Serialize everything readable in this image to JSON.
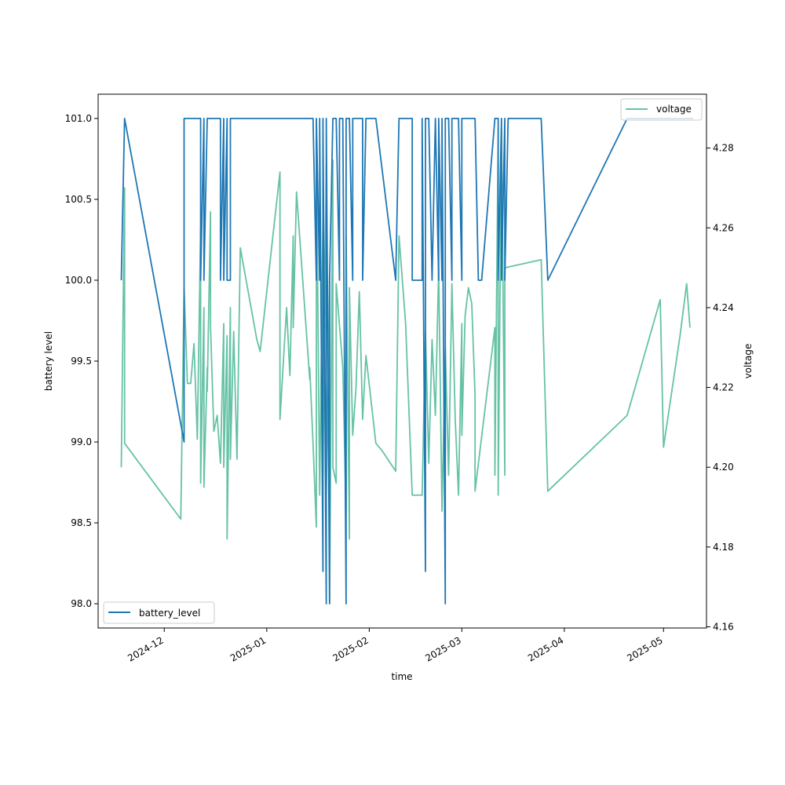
{
  "chart_data": {
    "type": "line",
    "xlabel": "time",
    "ylabel": "battery level",
    "y2label": "voltage",
    "x_tick_labels": [
      "2024-12",
      "2025-01",
      "2025-02",
      "2025-03",
      "2025-04",
      "2025-05"
    ],
    "x_ticks": [
      "2024-12-01",
      "2025-01-01",
      "2025-02-01",
      "2025-03-01",
      "2025-04-01",
      "2025-05-01"
    ],
    "xlim": [
      "2024-11-11",
      "2025-05-14"
    ],
    "ylim": [
      97.85,
      101.15
    ],
    "y_ticks": [
      98.0,
      98.5,
      99.0,
      99.5,
      100.0,
      100.5,
      101.0
    ],
    "y_tick_labels": [
      "98.0",
      "98.5",
      "99.0",
      "99.5",
      "100.0",
      "100.5",
      "101.0"
    ],
    "y2lim": [
      4.1597,
      4.2935
    ],
    "y2_ticks": [
      4.16,
      4.18,
      4.2,
      4.22,
      4.24,
      4.26,
      4.28
    ],
    "y2_tick_labels": [
      "4.16",
      "4.18",
      "4.20",
      "4.22",
      "4.24",
      "4.26",
      "4.28"
    ],
    "grid": false,
    "series": [
      {
        "name": "battery_level",
        "axis": "left",
        "color": "#1f77b4",
        "legend_loc": "lower-left",
        "points": [
          [
            "2024-11-18",
            100.0
          ],
          [
            "2024-11-19",
            101.0
          ],
          [
            "2024-12-07",
            99.0
          ],
          [
            "2024-12-07",
            101.0
          ],
          [
            "2024-12-12",
            101.0
          ],
          [
            "2024-12-12",
            100.0
          ],
          [
            "2024-12-13",
            101.0
          ],
          [
            "2024-12-13",
            100.0
          ],
          [
            "2024-12-14",
            101.0
          ],
          [
            "2024-12-18",
            101.0
          ],
          [
            "2024-12-18",
            100.0
          ],
          [
            "2024-12-19",
            101.0
          ],
          [
            "2024-12-19",
            100.0
          ],
          [
            "2024-12-20",
            101.0
          ],
          [
            "2024-12-20",
            100.0
          ],
          [
            "2024-12-21",
            100.0
          ],
          [
            "2024-12-21",
            101.0
          ],
          [
            "2025-01-15",
            101.0
          ],
          [
            "2025-01-16",
            100.0
          ],
          [
            "2025-01-16",
            101.0
          ],
          [
            "2025-01-17",
            100.0
          ],
          [
            "2025-01-17",
            101.0
          ],
          [
            "2025-01-18",
            98.2
          ],
          [
            "2025-01-18",
            101.0
          ],
          [
            "2025-01-19",
            98.0
          ],
          [
            "2025-01-19",
            101.0
          ],
          [
            "2025-01-20",
            98.0
          ],
          [
            "2025-01-20",
            100.0
          ],
          [
            "2025-01-21",
            101.0
          ],
          [
            "2025-01-22",
            101.0
          ],
          [
            "2025-01-23",
            100.0
          ],
          [
            "2025-01-23",
            101.0
          ],
          [
            "2025-01-24",
            101.0
          ],
          [
            "2025-01-25",
            98.0
          ],
          [
            "2025-01-25",
            101.0
          ],
          [
            "2025-01-26",
            101.0
          ],
          [
            "2025-01-27",
            100.0
          ],
          [
            "2025-01-27",
            101.0
          ],
          [
            "2025-01-28",
            101.0
          ],
          [
            "2025-01-30",
            101.0
          ],
          [
            "2025-01-30",
            100.0
          ],
          [
            "2025-01-31",
            101.0
          ],
          [
            "2025-02-03",
            101.0
          ],
          [
            "2025-02-09",
            100.0
          ],
          [
            "2025-02-10",
            101.0
          ],
          [
            "2025-02-14",
            101.0
          ],
          [
            "2025-02-14",
            100.0
          ],
          [
            "2025-02-17",
            100.0
          ],
          [
            "2025-02-17",
            101.0
          ],
          [
            "2025-02-18",
            98.2
          ],
          [
            "2025-02-18",
            101.0
          ],
          [
            "2025-02-19",
            101.0
          ],
          [
            "2025-02-20",
            100.0
          ],
          [
            "2025-02-21",
            101.0
          ],
          [
            "2025-02-22",
            100.0
          ],
          [
            "2025-02-22",
            101.0
          ],
          [
            "2025-02-23",
            100.0
          ],
          [
            "2025-02-23",
            101.0
          ],
          [
            "2025-02-24",
            98.0
          ],
          [
            "2025-02-24",
            101.0
          ],
          [
            "2025-02-25",
            101.0
          ],
          [
            "2025-02-26",
            100.0
          ],
          [
            "2025-02-26",
            101.0
          ],
          [
            "2025-02-28",
            101.0
          ],
          [
            "2025-03-01",
            100.0
          ],
          [
            "2025-03-01",
            101.0
          ],
          [
            "2025-03-05",
            101.0
          ],
          [
            "2025-03-06",
            100.0
          ],
          [
            "2025-03-07",
            100.0
          ],
          [
            "2025-03-11",
            101.0
          ],
          [
            "2025-03-12",
            101.0
          ],
          [
            "2025-03-12",
            100.0
          ],
          [
            "2025-03-13",
            101.0
          ],
          [
            "2025-03-13",
            100.0
          ],
          [
            "2025-03-14",
            101.0
          ],
          [
            "2025-03-14",
            100.0
          ],
          [
            "2025-03-15",
            101.0
          ],
          [
            "2025-03-25",
            101.0
          ],
          [
            "2025-03-27",
            100.0
          ],
          [
            "2025-04-20",
            101.0
          ],
          [
            "2025-05-10",
            101.0
          ]
        ]
      },
      {
        "name": "voltage",
        "axis": "right",
        "color": "#66c2a5",
        "legend_loc": "upper-right",
        "points": [
          [
            "2024-11-18",
            4.2
          ],
          [
            "2024-11-19",
            4.27
          ],
          [
            "2024-11-19",
            4.206
          ],
          [
            "2024-12-06",
            4.187
          ],
          [
            "2024-12-07",
            4.245
          ],
          [
            "2024-12-08",
            4.221
          ],
          [
            "2024-12-09",
            4.221
          ],
          [
            "2024-12-10",
            4.231
          ],
          [
            "2024-12-11",
            4.207
          ],
          [
            "2024-12-12",
            4.26
          ],
          [
            "2024-12-12",
            4.196
          ],
          [
            "2024-12-13",
            4.24
          ],
          [
            "2024-12-13",
            4.195
          ],
          [
            "2024-12-14",
            4.225
          ],
          [
            "2024-12-14",
            4.219
          ],
          [
            "2024-12-15",
            4.264
          ],
          [
            "2024-12-15",
            4.235
          ],
          [
            "2024-12-16",
            4.209
          ],
          [
            "2024-12-17",
            4.213
          ],
          [
            "2024-12-18",
            4.201
          ],
          [
            "2024-12-19",
            4.236
          ],
          [
            "2024-12-19",
            4.2
          ],
          [
            "2024-12-20",
            4.233
          ],
          [
            "2024-12-20",
            4.182
          ],
          [
            "2024-12-21",
            4.24
          ],
          [
            "2024-12-21",
            4.202
          ],
          [
            "2024-12-22",
            4.234
          ],
          [
            "2024-12-23",
            4.202
          ],
          [
            "2024-12-24",
            4.255
          ],
          [
            "2024-12-29",
            4.232
          ],
          [
            "2024-12-30",
            4.229
          ],
          [
            "2025-01-05",
            4.274
          ],
          [
            "2025-01-05",
            4.212
          ],
          [
            "2025-01-07",
            4.24
          ],
          [
            "2025-01-08",
            4.223
          ],
          [
            "2025-01-09",
            4.258
          ],
          [
            "2025-01-09",
            4.235
          ],
          [
            "2025-01-10",
            4.269
          ],
          [
            "2025-01-14",
            4.222
          ],
          [
            "2025-01-14",
            4.225
          ],
          [
            "2025-01-15",
            4.206
          ],
          [
            "2025-01-16",
            4.185
          ],
          [
            "2025-01-16",
            4.282
          ],
          [
            "2025-01-17",
            4.193
          ],
          [
            "2025-01-18",
            4.262
          ],
          [
            "2025-01-18",
            4.198
          ],
          [
            "2025-01-19",
            4.276
          ],
          [
            "2025-01-19",
            4.193
          ],
          [
            "2025-01-20",
            4.248
          ],
          [
            "2025-01-20",
            4.166
          ],
          [
            "2025-01-21",
            4.277
          ],
          [
            "2025-01-21",
            4.2
          ],
          [
            "2025-01-22",
            4.196
          ],
          [
            "2025-01-22",
            4.246
          ],
          [
            "2025-01-24",
            4.225
          ],
          [
            "2025-01-25",
            4.189
          ],
          [
            "2025-01-25",
            4.258
          ],
          [
            "2025-01-26",
            4.182
          ],
          [
            "2025-01-26",
            4.245
          ],
          [
            "2025-01-27",
            4.208
          ],
          [
            "2025-01-28",
            4.22
          ],
          [
            "2025-01-29",
            4.244
          ],
          [
            "2025-01-30",
            4.212
          ],
          [
            "2025-01-31",
            4.228
          ],
          [
            "2025-02-03",
            4.206
          ],
          [
            "2025-02-05",
            4.204
          ],
          [
            "2025-02-09",
            4.199
          ],
          [
            "2025-02-10",
            4.258
          ],
          [
            "2025-02-12",
            4.236
          ],
          [
            "2025-02-14",
            4.193
          ],
          [
            "2025-02-17",
            4.193
          ],
          [
            "2025-02-18",
            4.234
          ],
          [
            "2025-02-19",
            4.201
          ],
          [
            "2025-02-20",
            4.232
          ],
          [
            "2025-02-21",
            4.213
          ],
          [
            "2025-02-22",
            4.25
          ],
          [
            "2025-02-23",
            4.189
          ],
          [
            "2025-02-24",
            4.23
          ],
          [
            "2025-02-25",
            4.198
          ],
          [
            "2025-02-26",
            4.246
          ],
          [
            "2025-02-27",
            4.212
          ],
          [
            "2025-02-28",
            4.193
          ],
          [
            "2025-03-01",
            4.236
          ],
          [
            "2025-03-01",
            4.208
          ],
          [
            "2025-03-02",
            4.238
          ],
          [
            "2025-03-03",
            4.245
          ],
          [
            "2025-03-04",
            4.241
          ],
          [
            "2025-03-05",
            4.218
          ],
          [
            "2025-03-05",
            4.194
          ],
          [
            "2025-03-11",
            4.235
          ],
          [
            "2025-03-11",
            4.198
          ],
          [
            "2025-03-12",
            4.285
          ],
          [
            "2025-03-12",
            4.193
          ],
          [
            "2025-03-13",
            4.285
          ],
          [
            "2025-03-14",
            4.198
          ],
          [
            "2025-03-14",
            4.25
          ],
          [
            "2025-03-25",
            4.252
          ],
          [
            "2025-03-27",
            4.194
          ],
          [
            "2025-04-20",
            4.213
          ],
          [
            "2025-04-30",
            4.242
          ],
          [
            "2025-05-01",
            4.205
          ],
          [
            "2025-05-06",
            4.233
          ],
          [
            "2025-05-08",
            4.246
          ],
          [
            "2025-05-09",
            4.235
          ]
        ]
      }
    ]
  }
}
